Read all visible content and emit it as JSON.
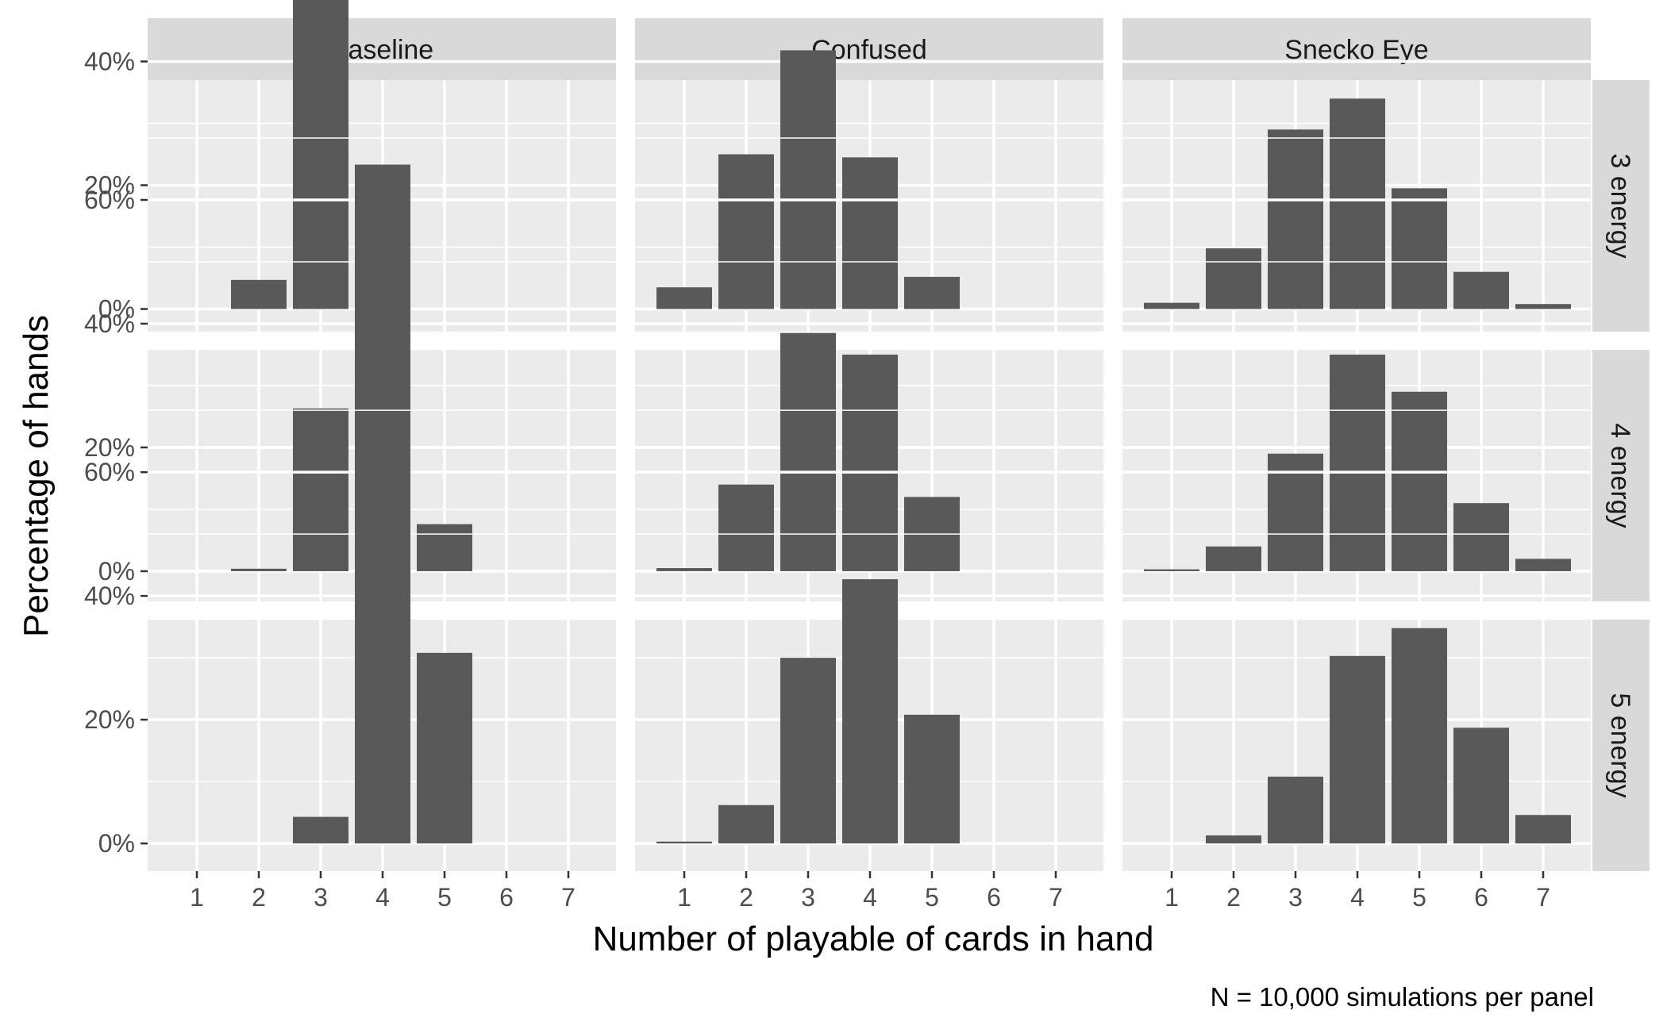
{
  "chart_data": {
    "type": "bar",
    "facet_columns": [
      "Baseline",
      "Confused",
      "Snecko Eye"
    ],
    "facet_rows": [
      "3 energy",
      "4 energy",
      "5 energy"
    ],
    "categories": [
      "1",
      "2",
      "3",
      "4",
      "5",
      "6",
      "7"
    ],
    "xlabel": "Number of playable of cards in hand",
    "ylabel": "Percentage of hands",
    "y_ticks": [
      "0%",
      "20%",
      "40%",
      "60%"
    ],
    "ylim": [
      0,
      0.78
    ],
    "caption": "N = 10,000 simulations per panel",
    "grid": true,
    "bar_color": "#595959",
    "panel_background": "#ebebeb",
    "strip_background": "#d9d9d9",
    "panels": [
      {
        "row": "3 energy",
        "col": "Baseline",
        "values": [
          0.0,
          0.047,
          0.735,
          0.218,
          0.0,
          0.0,
          0.0
        ]
      },
      {
        "row": "3 energy",
        "col": "Confused",
        "values": [
          0.035,
          0.25,
          0.418,
          0.245,
          0.052,
          0.0,
          0.0
        ]
      },
      {
        "row": "3 energy",
        "col": "Snecko Eye",
        "values": [
          0.01,
          0.098,
          0.29,
          0.34,
          0.195,
          0.06,
          0.008
        ]
      },
      {
        "row": "4 energy",
        "col": "Baseline",
        "values": [
          0.0,
          0.004,
          0.263,
          0.657,
          0.076,
          0.0,
          0.0
        ]
      },
      {
        "row": "4 energy",
        "col": "Confused",
        "values": [
          0.005,
          0.14,
          0.385,
          0.35,
          0.12,
          0.0,
          0.0
        ]
      },
      {
        "row": "4 energy",
        "col": "Snecko Eye",
        "values": [
          0.003,
          0.04,
          0.19,
          0.35,
          0.29,
          0.11,
          0.02
        ]
      },
      {
        "row": "5 energy",
        "col": "Baseline",
        "values": [
          0.0,
          0.0,
          0.043,
          0.65,
          0.308,
          0.0,
          0.0
        ]
      },
      {
        "row": "5 energy",
        "col": "Confused",
        "values": [
          0.003,
          0.062,
          0.3,
          0.427,
          0.208,
          0.0,
          0.0
        ]
      },
      {
        "row": "5 energy",
        "col": "Snecko Eye",
        "values": [
          0.0,
          0.013,
          0.108,
          0.303,
          0.348,
          0.187,
          0.046
        ]
      }
    ]
  }
}
